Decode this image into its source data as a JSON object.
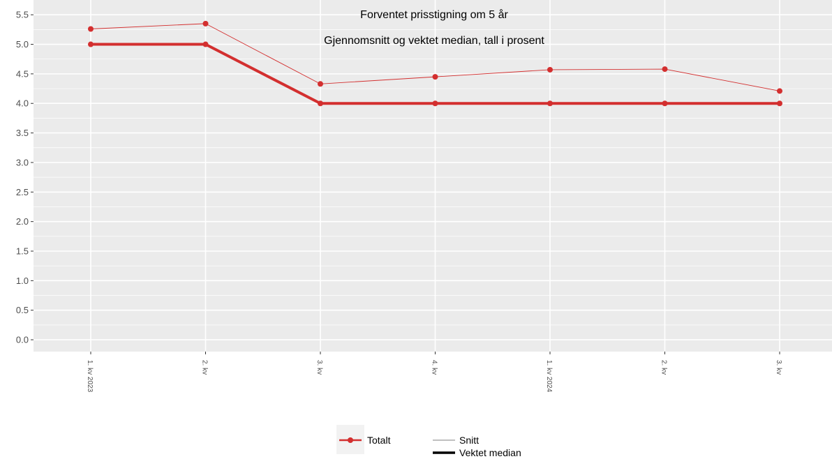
{
  "chart_data": {
    "type": "line",
    "title": "Forventet prisstigning om 5 år",
    "subtitle": "Gjennomsnitt og vektet median, tall i prosent",
    "xlabel": "",
    "ylabel": "",
    "categories": [
      "1. kv 2023",
      "2. kv",
      "3. kv",
      "4. kv",
      "1. kv 2024",
      "2. kv",
      "3. kv"
    ],
    "ylim": [
      -0.2,
      5.75
    ],
    "yticks": [
      "0.0",
      "0.5",
      "1.0",
      "1.5",
      "2.0",
      "2.5",
      "3.0",
      "3.5",
      "4.0",
      "4.5",
      "5.0",
      "5.5"
    ],
    "grid": true,
    "color": "#d32f2f",
    "series": [
      {
        "name": "Snitt",
        "group": "Totalt",
        "linetype": "thin",
        "values": [
          5.26,
          5.35,
          4.33,
          4.45,
          4.57,
          4.58,
          4.21
        ]
      },
      {
        "name": "Vektet median",
        "group": "Totalt",
        "linetype": "thick",
        "values": [
          5.0,
          5.0,
          4.0,
          4.0,
          4.0,
          4.0,
          4.0
        ]
      }
    ],
    "legend": {
      "placement": "bottom",
      "color_entries": [
        "Totalt"
      ],
      "size_entries": [
        "Snitt",
        "Vektet median"
      ]
    }
  }
}
